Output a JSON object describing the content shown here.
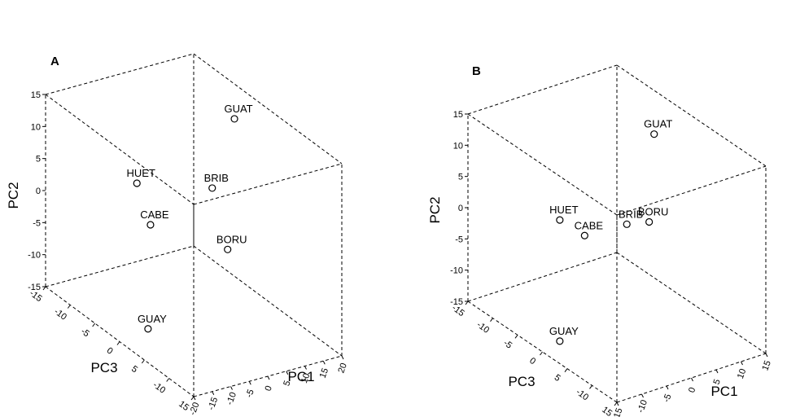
{
  "chart_data": [
    {
      "type": "scatter",
      "panel_label": "A",
      "axes": {
        "x": "PC1",
        "y": "PC2",
        "z": "PC3"
      },
      "xlim": [
        -20,
        20
      ],
      "ylim": [
        -15,
        15
      ],
      "zlim": [
        -15,
        15
      ],
      "x_ticks": [
        "-20",
        "-15",
        "-10",
        "-5",
        "0",
        "5",
        "10",
        "15",
        "20"
      ],
      "y_ticks": [
        "-15",
        "-10",
        "-5",
        "0",
        "5",
        "10",
        "15"
      ],
      "z_ticks": [
        "-15",
        "-10",
        "-5",
        "0",
        "5",
        "-10",
        "15"
      ],
      "points": [
        {
          "label": "GUAT",
          "x": 15,
          "y": 12.5,
          "z": -3
        },
        {
          "label": "BRIB",
          "x": 5,
          "y": 5,
          "z": 0
        },
        {
          "label": "BORU",
          "x": 4.5,
          "y": -2.5,
          "z": 3.5
        },
        {
          "label": "HUET",
          "x": -6,
          "y": 3.5,
          "z": -7
        },
        {
          "label": "CABE",
          "x": -5,
          "y": -2,
          "z": -5
        },
        {
          "label": "GUAY",
          "x": -11,
          "y": -15,
          "z": -1
        }
      ]
    },
    {
      "type": "scatter",
      "panel_label": "B",
      "axes": {
        "x": "PC1",
        "y": "PC2",
        "z": "PC3"
      },
      "xlim": [
        -15,
        15
      ],
      "ylim": [
        -15,
        15
      ],
      "zlim": [
        -15,
        15
      ],
      "x_ticks": [
        "-15",
        "-10",
        "-5",
        "0",
        "5",
        "10",
        "15"
      ],
      "y_ticks": [
        "-15",
        "-10",
        "-5",
        "0",
        "5",
        "10",
        "15"
      ],
      "z_ticks": [
        "-15",
        "-10",
        "-5",
        "0",
        "5",
        "-10",
        "15"
      ],
      "points": [
        {
          "label": "GUAT",
          "x": 12.5,
          "y": 10,
          "z": -5
        },
        {
          "label": "BRIB",
          "x": 2,
          "y": 1,
          "z": 0
        },
        {
          "label": "BORU",
          "x": 5.5,
          "y": 1,
          "z": 1
        },
        {
          "label": "HUET",
          "x": -7.5,
          "y": 2,
          "z": -4
        },
        {
          "label": "CABE",
          "x": -3.5,
          "y": -1,
          "z": -3
        },
        {
          "label": "GUAY",
          "x": -8,
          "y": -17,
          "z": -3.5
        }
      ]
    }
  ]
}
